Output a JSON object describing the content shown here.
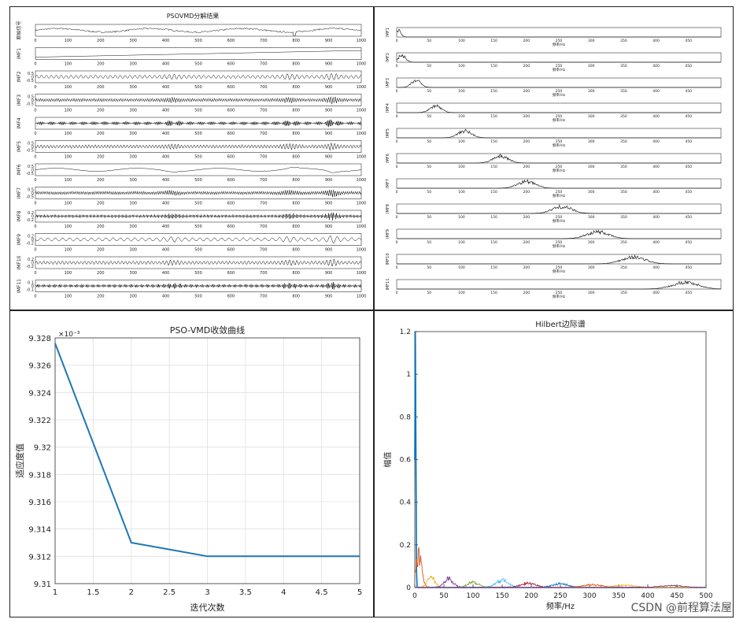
{
  "watermark": "CSDN @前程算法屋",
  "chart_data": [
    {
      "type": "line",
      "title": "PSOVMD分解结果",
      "xlim": [
        0,
        1000
      ],
      "xticks": [
        0,
        100,
        200,
        300,
        400,
        500,
        600,
        700,
        800,
        900,
        1000
      ],
      "series_labels": [
        "原始信号",
        "IMF1",
        "IMF2",
        "IMF3",
        "IMF4",
        "IMF5",
        "IMF6",
        "IMF7",
        "IMF8",
        "IMF9",
        "IMF10",
        "IMF11"
      ],
      "ytick_labels": [
        [],
        [],
        [
          "0.5",
          "0",
          "-0.5"
        ],
        [
          "0.5",
          "0",
          "-0.5"
        ],
        [],
        [
          "0.5",
          "0",
          "-0.5"
        ],
        [
          "0.5",
          "0",
          "-0.5"
        ],
        [
          "0.5",
          "0",
          "-0.5"
        ],
        [
          "0.2",
          "0",
          "-0.2"
        ],
        [
          "0.2",
          "0",
          "-0.2"
        ],
        [
          "0.2",
          "0",
          "-0.2"
        ],
        [
          "0.1",
          "0",
          "-0.1"
        ]
      ],
      "center_frequencies": [
        0,
        2,
        25,
        55,
        100,
        150,
        190,
        250,
        300,
        360,
        410,
        460
      ]
    },
    {
      "type": "line",
      "title": "",
      "xlim": [
        0,
        500
      ],
      "xticks": [
        0,
        50,
        100,
        150,
        200,
        250,
        300,
        350,
        400,
        450
      ],
      "xlabel": "频率/Hz",
      "panel_labels": [
        "IMF1",
        "IMF2",
        "IMF3",
        "IMF4",
        "IMF5",
        "IMF6",
        "IMF7",
        "IMF8",
        "IMF9",
        "IMF10",
        "IMF11"
      ],
      "peak_frequencies": [
        2,
        8,
        30,
        60,
        105,
        160,
        200,
        255,
        310,
        365,
        445
      ]
    },
    {
      "type": "line",
      "title": "PSO-VMD收敛曲线",
      "xlabel": "迭代次数",
      "ylabel": "适应度值",
      "exponent_label": "×10⁻³",
      "x": [
        1,
        2,
        3,
        4,
        5
      ],
      "values": [
        9.3276,
        9.313,
        9.312,
        9.312,
        9.312
      ],
      "xlim": [
        1,
        5
      ],
      "ylim": [
        9.31,
        9.328
      ],
      "xticks": [
        1,
        1.5,
        2,
        2.5,
        3,
        3.5,
        4,
        4.5,
        5
      ],
      "yticks": [
        9.31,
        9.312,
        9.314,
        9.316,
        9.318,
        9.32,
        9.322,
        9.324,
        9.326,
        9.328
      ],
      "xtick_labels": [
        "1",
        "1.5",
        "2",
        "2.5",
        "3",
        "3.5",
        "4",
        "4.5",
        "5"
      ],
      "ytick_labels": [
        "9.31",
        "9.312",
        "9.314",
        "9.316",
        "9.318",
        "9.32",
        "9.322",
        "9.324",
        "9.326",
        "9.328"
      ],
      "grid": true,
      "line_color": "#1f77b4"
    },
    {
      "type": "line",
      "title": "Hilbert边际谱",
      "xlabel": "频率/Hz",
      "ylabel": "幅值",
      "xlim": [
        0,
        500
      ],
      "ylim": [
        0,
        1.2
      ],
      "xticks": [
        0,
        50,
        100,
        150,
        200,
        250,
        300,
        350,
        400,
        450,
        500
      ],
      "yticks": [
        0,
        0.2,
        0.4,
        0.6,
        0.8,
        1,
        1.2
      ],
      "ytick_labels": [
        "0",
        "0.2",
        "0.4",
        "0.6",
        "0.8",
        "1",
        "1.2"
      ],
      "grid": false,
      "series": [
        {
          "name": "IMF1",
          "color": "#0072bd",
          "peak_freq": 1,
          "peak_amp": 1.2
        },
        {
          "name": "IMF2",
          "color": "#d95319",
          "peak_freq": 7,
          "peak_amp": 0.2
        },
        {
          "name": "IMF3",
          "color": "#edb120",
          "peak_freq": 28,
          "peak_amp": 0.06
        },
        {
          "name": "IMF4",
          "color": "#7e2f8e",
          "peak_freq": 58,
          "peak_amp": 0.05
        },
        {
          "name": "IMF5",
          "color": "#77ac30",
          "peak_freq": 100,
          "peak_amp": 0.03
        },
        {
          "name": "IMF6",
          "color": "#4dbeee",
          "peak_freq": 150,
          "peak_amp": 0.04
        },
        {
          "name": "IMF7",
          "color": "#a2142f",
          "peak_freq": 195,
          "peak_amp": 0.025
        },
        {
          "name": "IMF8",
          "color": "#0072bd",
          "peak_freq": 250,
          "peak_amp": 0.02
        },
        {
          "name": "IMF9",
          "color": "#d95319",
          "peak_freq": 305,
          "peak_amp": 0.015
        },
        {
          "name": "IMF10",
          "color": "#edb120",
          "peak_freq": 360,
          "peak_amp": 0.012
        },
        {
          "name": "IMF11",
          "color": "#7e2f8e",
          "peak_freq": 440,
          "peak_amp": 0.01
        }
      ]
    }
  ]
}
